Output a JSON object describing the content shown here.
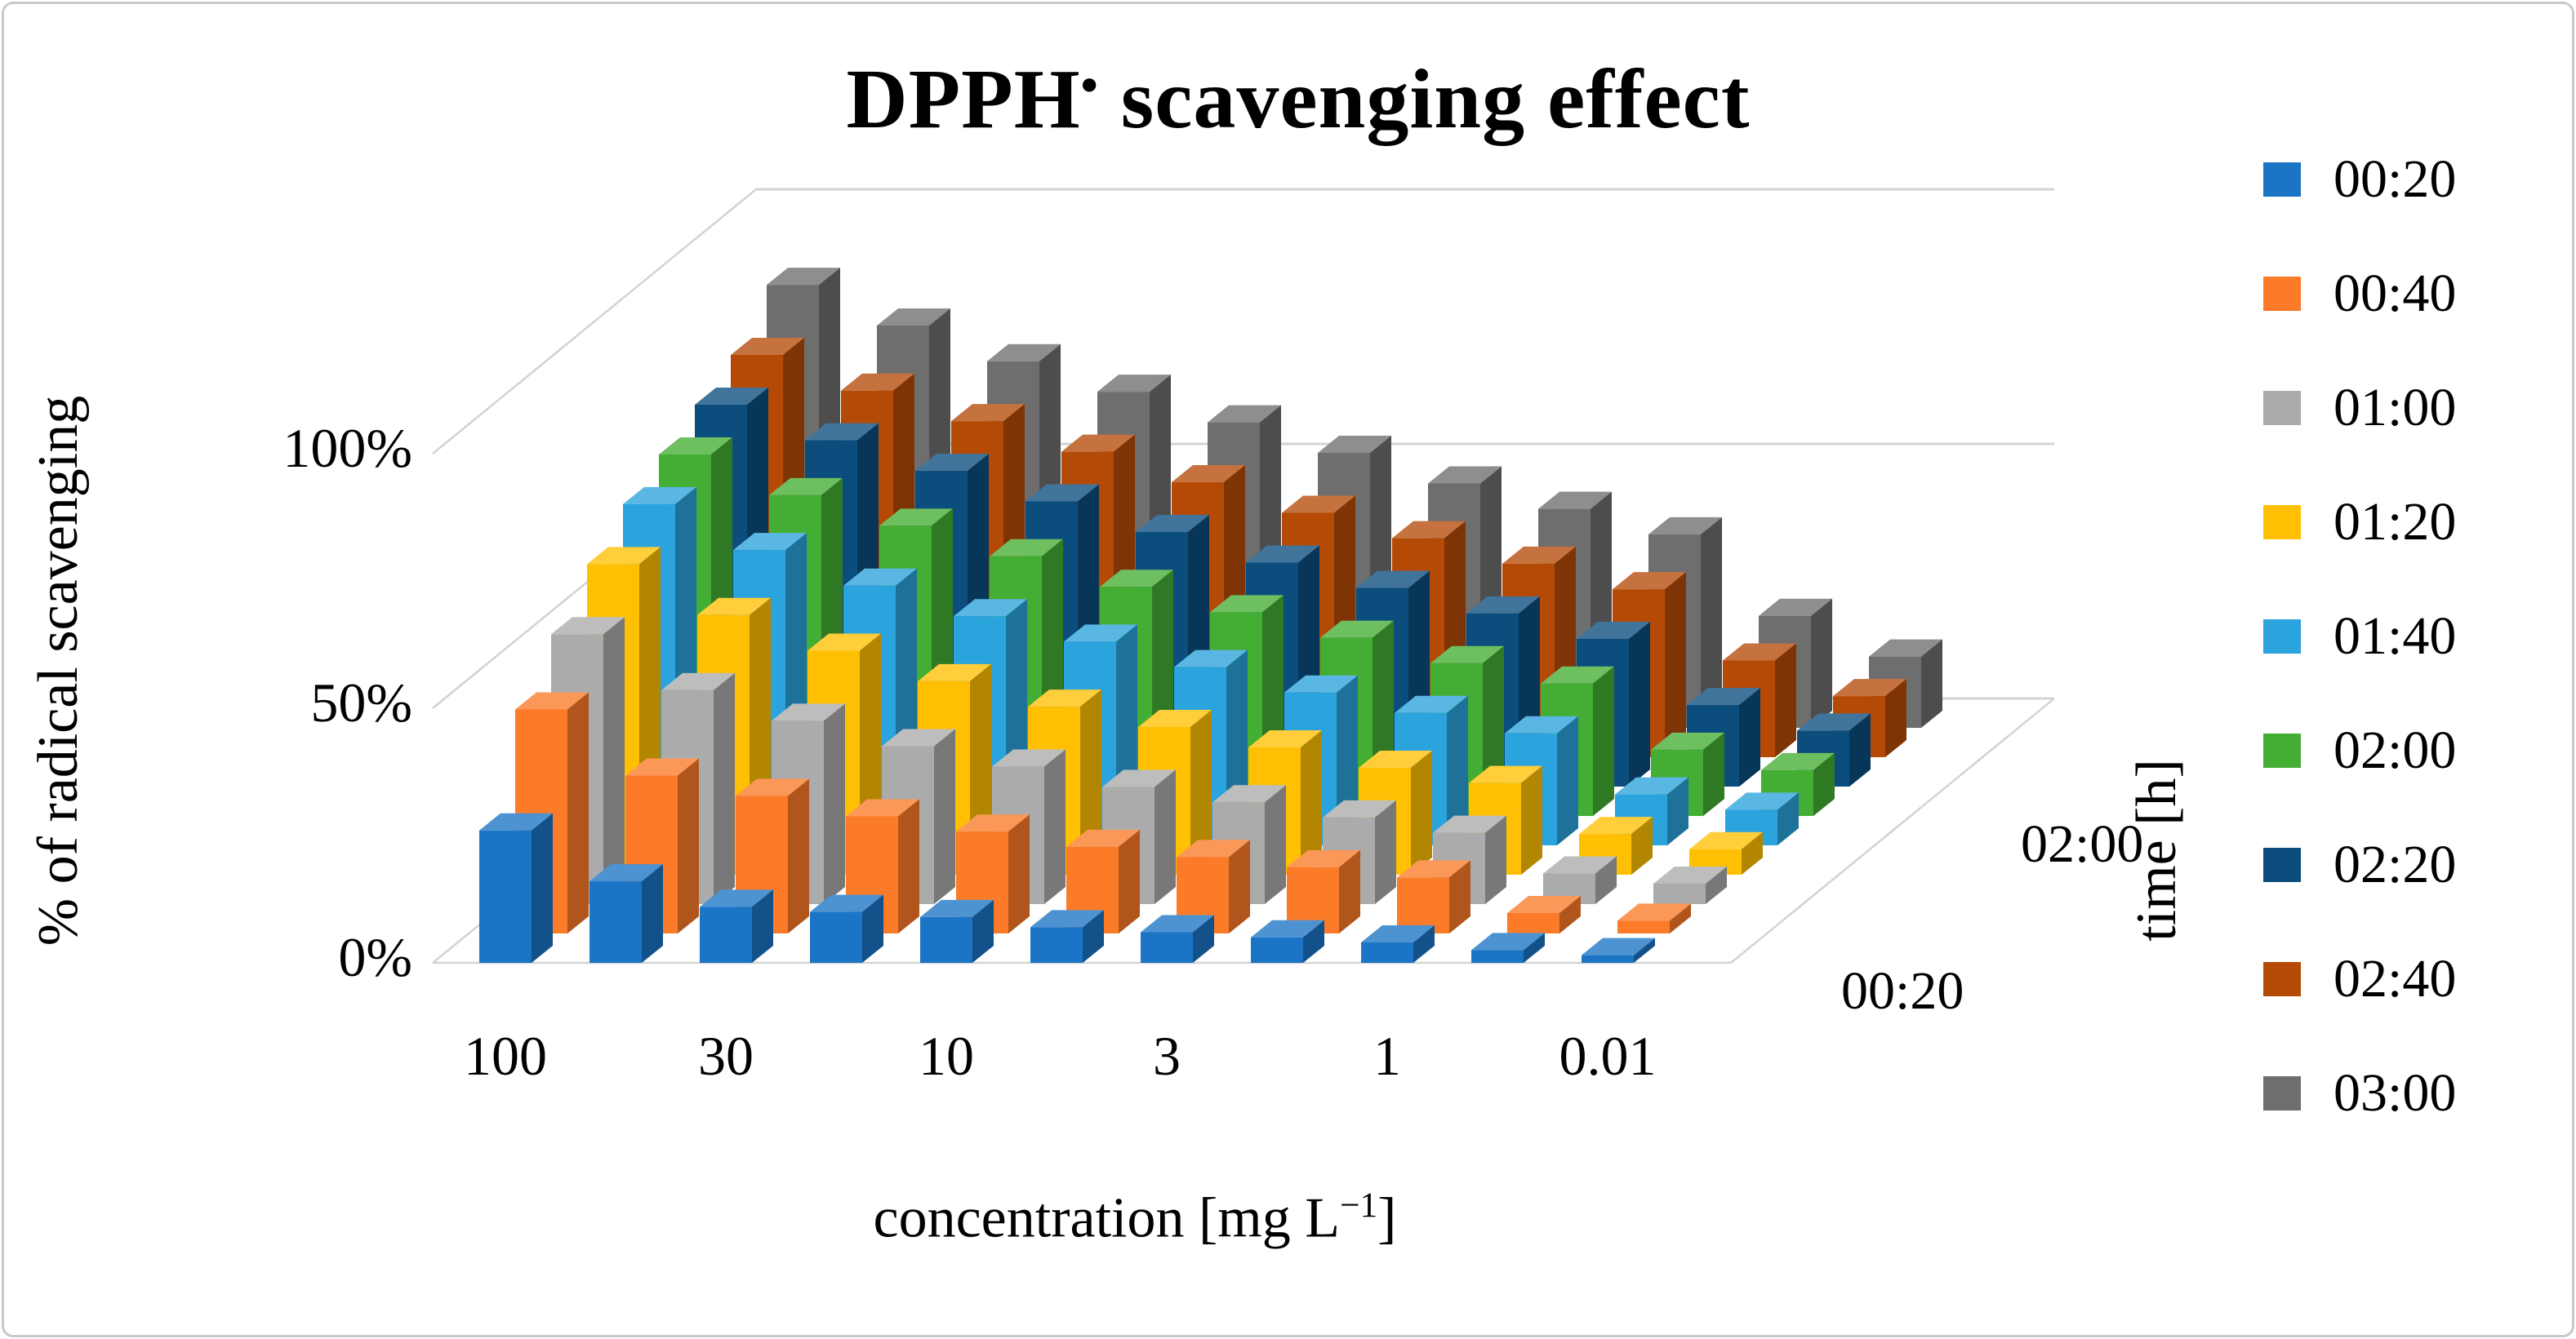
{
  "title": {
    "main": "DPPH",
    "radical": "•",
    "rest": " scavenging effect"
  },
  "y_axis": {
    "title": "% of radical scavenging",
    "ticks": [
      {
        "value": 0,
        "label": "0%"
      },
      {
        "value": 50,
        "label": "50%"
      },
      {
        "value": 100,
        "label": "100%"
      }
    ]
  },
  "x_axis": {
    "title_pre": "concentration [mg L",
    "title_sup": "−1",
    "title_post": "]",
    "tick_labels": [
      "100",
      "30",
      "10",
      "3",
      "1",
      "0.01"
    ]
  },
  "depth_axis": {
    "title": "time [h]",
    "shown_ticks": [
      {
        "series_index": 0,
        "label": "00:20"
      },
      {
        "series_index": 5,
        "label": "02:00"
      }
    ]
  },
  "chart_data": {
    "type": "bar",
    "subtype": "3d-column",
    "title": "DPPH• scavenging effect",
    "xlabel": "concentration [mg L−1]",
    "ylabel": "% of radical scavenging",
    "zlabel": "time [h]",
    "value_unit": "%",
    "ylim": [
      0,
      100
    ],
    "grid": true,
    "legend_position": "right",
    "category_labels": [
      "100",
      "",
      "30",
      "",
      "10",
      "",
      "3",
      "",
      "1",
      "",
      "0.01"
    ],
    "labeled_category_indices": [
      0,
      2,
      4,
      6,
      8,
      10
    ],
    "series": [
      {
        "name": "00:20",
        "color": "#1B74C5",
        "values": [
          26,
          16,
          11,
          10,
          9,
          7,
          6,
          5,
          4,
          2.5,
          1.5
        ]
      },
      {
        "name": "00:40",
        "color": "#FB7B28",
        "values": [
          44,
          31,
          27,
          23,
          20,
          17,
          15,
          13,
          11,
          4,
          2.5
        ]
      },
      {
        "name": "01:00",
        "color": "#ABABAB",
        "values": [
          53,
          42,
          36,
          31,
          27,
          23,
          20,
          17,
          14,
          6,
          4
        ]
      },
      {
        "name": "01:20",
        "color": "#FFC003",
        "values": [
          61,
          51,
          44,
          38,
          33,
          29,
          25,
          21,
          18,
          8,
          5
        ]
      },
      {
        "name": "01:40",
        "color": "#2BA3DC",
        "values": [
          67,
          58,
          51,
          45,
          40,
          35,
          30,
          26,
          22,
          10,
          7
        ]
      },
      {
        "name": "02:00",
        "color": "#44AD33",
        "values": [
          71,
          63,
          57,
          51,
          45,
          40,
          35,
          30,
          26,
          13,
          9
        ]
      },
      {
        "name": "02:20",
        "color": "#0B4D7D",
        "values": [
          75,
          68,
          62,
          56,
          50,
          44,
          39,
          34,
          29,
          16,
          11
        ]
      },
      {
        "name": "02:40",
        "color": "#B54A07",
        "values": [
          79,
          72,
          66,
          60,
          54,
          48,
          43,
          38,
          33,
          19,
          12
        ]
      },
      {
        "name": "03:00",
        "color": "#6E6E6E",
        "values": [
          87,
          79,
          72,
          66,
          60,
          54,
          48,
          43,
          38,
          22,
          14
        ]
      }
    ]
  }
}
